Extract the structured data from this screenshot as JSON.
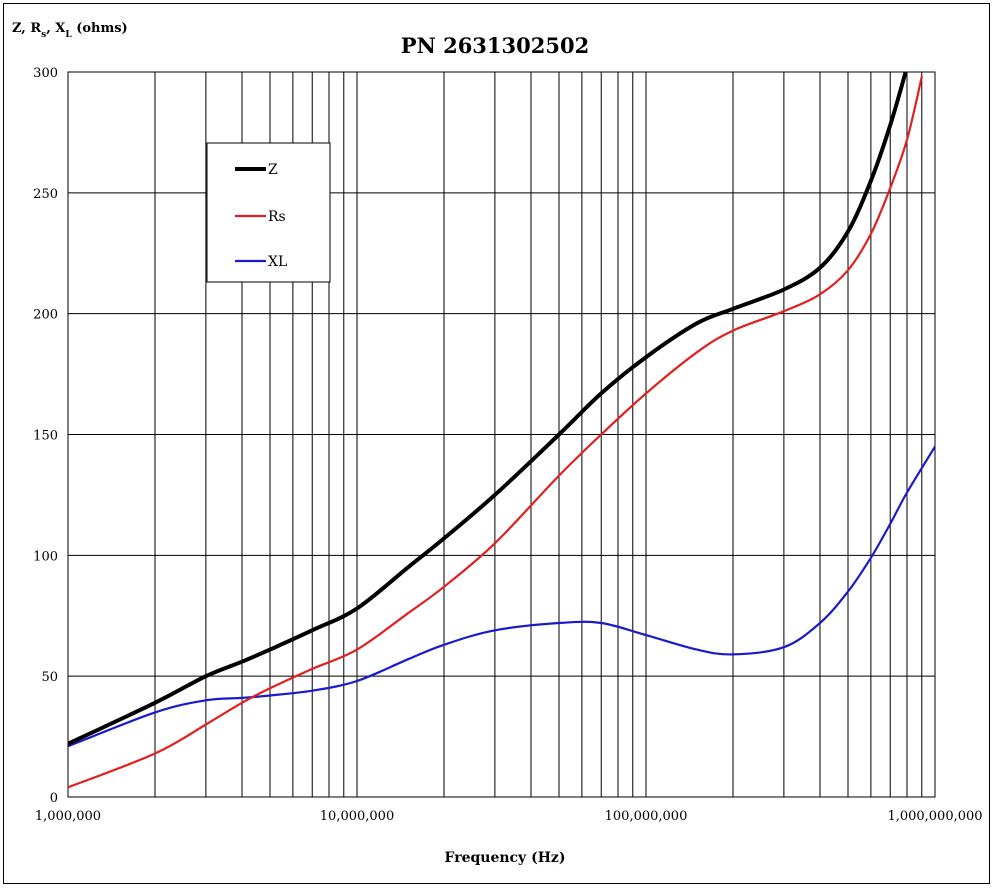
{
  "chart_data": {
    "type": "line",
    "title": "PN 2631302502",
    "ylabel": {
      "main": "Z, R",
      "sub1": "s",
      "mid": ", X",
      "sub2": "L",
      "tail": " (ohms)"
    },
    "xlabel": "Frequency (Hz)",
    "x_scale": "log",
    "xlim": [
      1000000,
      1000000000
    ],
    "ylim": [
      0,
      300
    ],
    "grid": true,
    "legend_position": "upper-left",
    "x_tick_labels": [
      {
        "value": 1000000,
        "label": "1,000,000"
      },
      {
        "value": 10000000,
        "label": "10,000,000"
      },
      {
        "value": 100000000,
        "label": "100,000,000"
      },
      {
        "value": 1000000000,
        "label": "1,000,000,000"
      }
    ],
    "y_tick_labels": [
      {
        "value": 0,
        "label": "0"
      },
      {
        "value": 50,
        "label": "50"
      },
      {
        "value": 100,
        "label": "100"
      },
      {
        "value": 150,
        "label": "150"
      },
      {
        "value": 200,
        "label": "200"
      },
      {
        "value": 250,
        "label": "250"
      },
      {
        "value": 300,
        "label": "300"
      }
    ],
    "series": [
      {
        "name": "Z",
        "color": "#000000",
        "width": 4,
        "x": [
          1000000,
          2000000,
          3000000,
          4000000,
          5000000,
          7000000,
          10000000,
          15000000,
          20000000,
          30000000,
          50000000,
          70000000,
          100000000,
          150000000,
          200000000,
          300000000,
          400000000,
          500000000,
          600000000,
          700000000,
          800000000
        ],
        "y": [
          22,
          39,
          50,
          56,
          61,
          69,
          78,
          95,
          107,
          125,
          150,
          167,
          182,
          196,
          202,
          210,
          219,
          234,
          255,
          278,
          302
        ]
      },
      {
        "name": "Rs",
        "color": "#e02020",
        "width": 2.2,
        "x": [
          1000000,
          2000000,
          3000000,
          4000000,
          5000000,
          7000000,
          10000000,
          15000000,
          20000000,
          30000000,
          50000000,
          70000000,
          100000000,
          150000000,
          200000000,
          300000000,
          400000000,
          500000000,
          600000000,
          700000000,
          800000000,
          900000000
        ],
        "y": [
          4,
          18,
          30,
          39,
          45,
          53,
          61,
          76,
          87,
          105,
          133,
          150,
          167,
          184,
          193,
          201,
          208,
          218,
          233,
          252,
          272,
          298
        ]
      },
      {
        "name": "XL",
        "color": "#1a1acc",
        "width": 2.2,
        "x": [
          1000000,
          2000000,
          3000000,
          4000000,
          5000000,
          7000000,
          10000000,
          15000000,
          20000000,
          30000000,
          50000000,
          70000000,
          100000000,
          150000000,
          200000000,
          300000000,
          400000000,
          500000000,
          600000000,
          700000000,
          800000000,
          1000000000
        ],
        "y": [
          21,
          35,
          40,
          41,
          42,
          44,
          48,
          57,
          63,
          69,
          72,
          72,
          67,
          61,
          59,
          62,
          72,
          85,
          99,
          113,
          126,
          145
        ]
      }
    ]
  }
}
